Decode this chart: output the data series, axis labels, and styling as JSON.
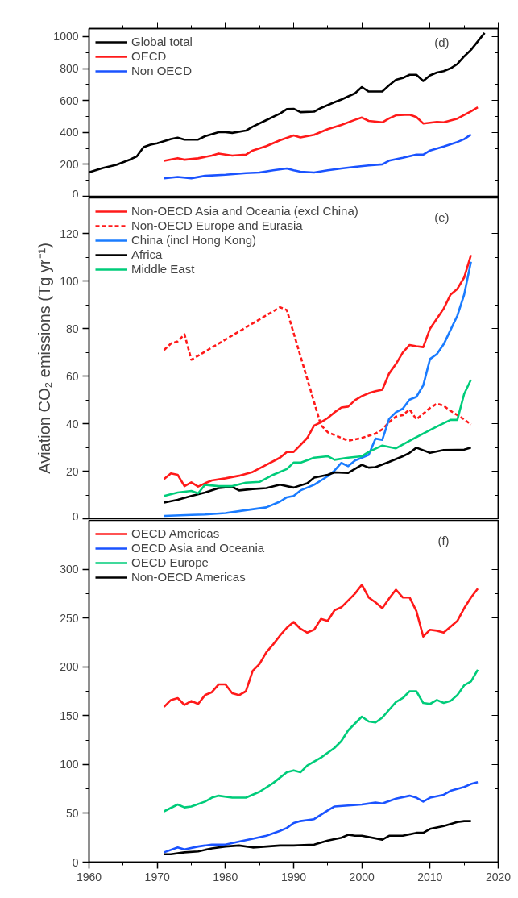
{
  "chart_data": [
    {
      "type": "line",
      "xlim": [
        1960,
        2020
      ],
      "xticks": [
        1960,
        1970,
        1980,
        1990,
        2000,
        2010,
        2020
      ],
      "ylim": [
        0,
        1050
      ],
      "yticks": [
        0,
        200,
        400,
        600,
        800,
        1000
      ],
      "tick_labels": "y",
      "grid": false,
      "legend": "top left",
      "marker": "none",
      "annotations": [
        "(d)"
      ],
      "series": [
        {
          "name": "Global total",
          "color": "#000000",
          "line_style": "solid",
          "x": [
            1960,
            1962,
            1964,
            1966,
            1967,
            1968,
            1969,
            1970,
            1972,
            1973,
            1974,
            1976,
            1977,
            1979,
            1980,
            1981,
            1983,
            1984,
            1986,
            1988,
            1989,
            1990,
            1991,
            1993,
            1994,
            1996,
            1997,
            1999,
            2000,
            2001,
            2003,
            2004,
            2005,
            2006,
            2007,
            2008,
            2009,
            2010,
            2011,
            2012,
            2013,
            2014,
            2015,
            2016,
            2017,
            2018
          ],
          "values": [
            150,
            177,
            197,
            230,
            250,
            308,
            323,
            332,
            358,
            367,
            355,
            355,
            376,
            401,
            402,
            397,
            411,
            436,
            477,
            518,
            546,
            548,
            527,
            530,
            553,
            589,
            606,
            645,
            684,
            656,
            656,
            695,
            730,
            741,
            761,
            761,
            722,
            757,
            775,
            784,
            801,
            828,
            876,
            917,
            970,
            1023
          ]
        },
        {
          "name": "OECD",
          "color": "#ff1a1a",
          "line_style": "solid",
          "x": [
            1971,
            1973,
            1974,
            1976,
            1978,
            1979,
            1981,
            1983,
            1984,
            1986,
            1988,
            1990,
            1991,
            1993,
            1995,
            1997,
            1999,
            2000,
            2001,
            2003,
            2004,
            2005,
            2007,
            2008,
            2009,
            2011,
            2012,
            2014,
            2015,
            2016,
            2017
          ],
          "values": [
            222,
            239,
            229,
            238,
            255,
            268,
            255,
            261,
            287,
            314,
            351,
            381,
            369,
            385,
            420,
            447,
            479,
            493,
            472,
            463,
            488,
            507,
            511,
            496,
            456,
            466,
            463,
            486,
            509,
            532,
            557
          ]
        },
        {
          "name": "Non OECD",
          "color": "#1a53ff",
          "line_style": "solid",
          "x": [
            1971,
            1973,
            1975,
            1977,
            1980,
            1983,
            1985,
            1987,
            1989,
            1990,
            1991,
            1993,
            1995,
            1997,
            1999,
            2001,
            2003,
            2004,
            2006,
            2008,
            2009,
            2010,
            2012,
            2014,
            2015,
            2016
          ],
          "values": [
            112,
            121,
            113,
            128,
            135,
            145,
            149,
            163,
            174,
            163,
            154,
            149,
            163,
            174,
            184,
            193,
            200,
            223,
            241,
            261,
            261,
            287,
            312,
            340,
            358,
            387
          ]
        }
      ]
    },
    {
      "type": "line",
      "xlim": [
        1960,
        2020
      ],
      "xticks": [
        1960,
        1970,
        1980,
        1990,
        2000,
        2010,
        2020
      ],
      "ylim": [
        0,
        135
      ],
      "yticks": [
        0,
        20,
        40,
        60,
        80,
        100,
        120
      ],
      "tick_labels": "y",
      "grid": false,
      "legend": "top left",
      "marker": "none",
      "annotations": [
        "(e)"
      ],
      "ylabel": "Aviation CO₂ emissions (Tg yr⁻¹)",
      "series": [
        {
          "name": "Non-OECD Asia and Oceania (excl China)",
          "color": "#ff1a1a",
          "line_style": "solid",
          "x": [
            1971,
            1972,
            1973,
            1974,
            1975,
            1976,
            1977,
            1978,
            1980,
            1982,
            1984,
            1986,
            1988,
            1989,
            1990,
            1991,
            1992,
            1993,
            1994,
            1995,
            1996,
            1997,
            1998,
            1999,
            2000,
            2001,
            2002,
            2003,
            2004,
            2005,
            2006,
            2007,
            2008,
            2009,
            2010,
            2011,
            2012,
            2013,
            2014,
            2015,
            2016
          ],
          "values": [
            16.7,
            19.1,
            18.5,
            13.7,
            15.3,
            13.5,
            14.9,
            16.1,
            17.0,
            18.1,
            19.7,
            22.7,
            25.7,
            28.1,
            28.1,
            31.0,
            34.0,
            39.2,
            40.6,
            42.4,
            44.8,
            46.8,
            47.2,
            49.9,
            51.6,
            52.8,
            53.7,
            54.3,
            61.1,
            65.1,
            69.9,
            73.1,
            72.6,
            72.2,
            80.0,
            84.2,
            88.4,
            94.3,
            96.7,
            101.5,
            111.0
          ]
        },
        {
          "name": "Non-OECD Europe and Eurasia",
          "color": "#ff1a1a",
          "line_style": "dashed",
          "x": [
            1971,
            1972,
            1973,
            1974,
            1975,
            1988,
            1989,
            1994,
            1995,
            1998,
            2000,
            2002,
            2003,
            2004,
            2005,
            2006,
            2007,
            2008,
            2009,
            2010,
            2011,
            2012,
            2013,
            2014,
            2015,
            2016
          ],
          "values": [
            71.0,
            73.7,
            74.6,
            77.6,
            66.9,
            89.0,
            87.8,
            39.4,
            36.4,
            32.8,
            34.0,
            35.8,
            37.6,
            40.6,
            43.0,
            43.6,
            46.0,
            41.8,
            44.2,
            46.6,
            48.4,
            47.5,
            45.4,
            43.6,
            41.8,
            39.6
          ]
        },
        {
          "name": "China (incl Hong Kong)",
          "color": "#1a7cff",
          "line_style": "solid",
          "x": [
            1971,
            1975,
            1977,
            1980,
            1983,
            1986,
            1988,
            1989,
            1990,
            1991,
            1993,
            1995,
            1996,
            1997,
            1998,
            1999,
            2000,
            2001,
            2002,
            2003,
            2004,
            2005,
            2006,
            2007,
            2008,
            2009,
            2010,
            2011,
            2012,
            2013,
            2014,
            2015,
            2016
          ],
          "values": [
            1.2,
            1.6,
            1.8,
            2.4,
            3.6,
            4.8,
            7.2,
            9.0,
            9.6,
            11.9,
            14.3,
            17.9,
            20.3,
            23.5,
            22.1,
            24.5,
            25.7,
            26.9,
            33.7,
            33.2,
            42.0,
            44.8,
            46.3,
            50.1,
            51.3,
            56.1,
            67.2,
            69.3,
            73.4,
            79.4,
            85.4,
            94.3,
            108.1
          ]
        },
        {
          "name": "Africa",
          "color": "#000000",
          "line_style": "solid",
          "x": [
            1971,
            1973,
            1975,
            1977,
            1979,
            1981,
            1982,
            1984,
            1986,
            1988,
            1990,
            1992,
            1993,
            1995,
            1996,
            1998,
            2000,
            2001,
            2002,
            2004,
            2006,
            2007,
            2008,
            2010,
            2012,
            2014,
            2015,
            2016
          ],
          "values": [
            6.8,
            8.0,
            9.6,
            11.0,
            12.9,
            13.4,
            11.9,
            12.5,
            12.9,
            14.3,
            13.1,
            14.9,
            17.3,
            18.5,
            19.5,
            19.3,
            22.7,
            21.5,
            21.7,
            23.9,
            26.3,
            27.7,
            29.9,
            27.7,
            28.9,
            29.0,
            29.1,
            29.9
          ]
        },
        {
          "name": "Middle East",
          "color": "#00cc7a",
          "line_style": "solid",
          "x": [
            1971,
            1973,
            1975,
            1976,
            1977,
            1979,
            1981,
            1983,
            1985,
            1987,
            1989,
            1990,
            1991,
            1993,
            1995,
            1996,
            1998,
            2000,
            2001,
            2003,
            2005,
            2007,
            2009,
            2011,
            2013,
            2014,
            2015,
            2016
          ],
          "values": [
            9.6,
            11.0,
            11.7,
            10.7,
            14.3,
            13.7,
            13.7,
            15.2,
            15.5,
            18.5,
            20.9,
            23.6,
            23.6,
            25.7,
            26.3,
            24.8,
            25.7,
            26.3,
            28.1,
            30.8,
            29.6,
            32.8,
            35.8,
            38.8,
            41.6,
            41.6,
            52.5,
            58.5
          ]
        }
      ]
    },
    {
      "type": "line",
      "xlim": [
        1960,
        2020
      ],
      "xticks": [
        1960,
        1970,
        1980,
        1990,
        2000,
        2010,
        2020
      ],
      "ylim": [
        0,
        350
      ],
      "yticks": [
        0,
        50,
        100,
        150,
        200,
        250,
        300
      ],
      "grid": false,
      "legend": "top left",
      "marker": "none",
      "annotations": [
        "(f)"
      ],
      "series": [
        {
          "name": "OECD Americas",
          "color": "#ff1a1a",
          "line_style": "solid",
          "x": [
            1971,
            1972,
            1973,
            1974,
            1975,
            1976,
            1977,
            1978,
            1979,
            1980,
            1981,
            1982,
            1983,
            1984,
            1985,
            1986,
            1987,
            1988,
            1989,
            1990,
            1991,
            1992,
            1993,
            1994,
            1995,
            1996,
            1997,
            1998,
            1999,
            2000,
            2001,
            2002,
            2003,
            2004,
            2005,
            2006,
            2007,
            2008,
            2009,
            2010,
            2011,
            2012,
            2013,
            2014,
            2015,
            2016,
            2017
          ],
          "values": [
            159,
            166,
            168,
            161,
            165,
            162,
            171,
            174,
            182,
            182,
            173,
            171,
            175,
            196,
            203,
            215,
            223,
            232,
            240,
            246,
            239,
            235,
            238,
            249,
            247,
            258,
            261,
            268,
            275,
            284,
            271,
            266,
            260,
            270,
            279,
            271,
            271,
            257,
            231,
            238,
            237,
            235,
            241,
            247,
            260,
            271,
            280
          ]
        },
        {
          "name": "OECD Asia and Oceania",
          "color": "#1a53ff",
          "line_style": "solid",
          "x": [
            1971,
            1973,
            1974,
            1976,
            1978,
            1980,
            1982,
            1984,
            1986,
            1988,
            1989,
            1990,
            1991,
            1993,
            1995,
            1996,
            1998,
            2000,
            2002,
            2003,
            2005,
            2007,
            2008,
            2009,
            2010,
            2012,
            2013,
            2015,
            2016,
            2017
          ],
          "values": [
            10,
            15,
            13,
            16,
            18,
            18,
            21,
            24,
            27,
            32,
            35,
            40,
            42,
            44,
            53,
            57,
            58,
            59,
            61,
            60,
            65,
            68,
            66,
            62,
            66,
            69,
            73,
            77,
            80,
            82
          ]
        },
        {
          "name": "OECD Europe",
          "color": "#00cc7a",
          "line_style": "solid",
          "x": [
            1971,
            1973,
            1974,
            1975,
            1977,
            1978,
            1979,
            1981,
            1983,
            1985,
            1987,
            1989,
            1990,
            1991,
            1992,
            1994,
            1996,
            1997,
            1998,
            1999,
            2000,
            2001,
            2002,
            2003,
            2004,
            2005,
            2006,
            2007,
            2008,
            2009,
            2010,
            2011,
            2012,
            2013,
            2014,
            2015,
            2016,
            2017
          ],
          "values": [
            52,
            59,
            56,
            57,
            62,
            66,
            68,
            66,
            66,
            72,
            81,
            92,
            94,
            92,
            99,
            107,
            117,
            124,
            135,
            142,
            149,
            144,
            143,
            148,
            156,
            164,
            168,
            175,
            175,
            163,
            162,
            166,
            163,
            165,
            171,
            181,
            185,
            197
          ]
        },
        {
          "name": "Non-OECD Americas",
          "color": "#000000",
          "line_style": "solid",
          "x": [
            1971,
            1972,
            1974,
            1976,
            1978,
            1980,
            1982,
            1984,
            1986,
            1988,
            1990,
            1993,
            1995,
            1997,
            1998,
            1999,
            2000,
            2003,
            2004,
            2006,
            2008,
            2009,
            2010,
            2012,
            2014,
            2015,
            2016
          ],
          "values": [
            8,
            8,
            10,
            11,
            14,
            16,
            17,
            15,
            16,
            17,
            17,
            18,
            22,
            25,
            28,
            27,
            27,
            23,
            27,
            27,
            30,
            30,
            34,
            37,
            41,
            42,
            42
          ]
        }
      ]
    }
  ]
}
